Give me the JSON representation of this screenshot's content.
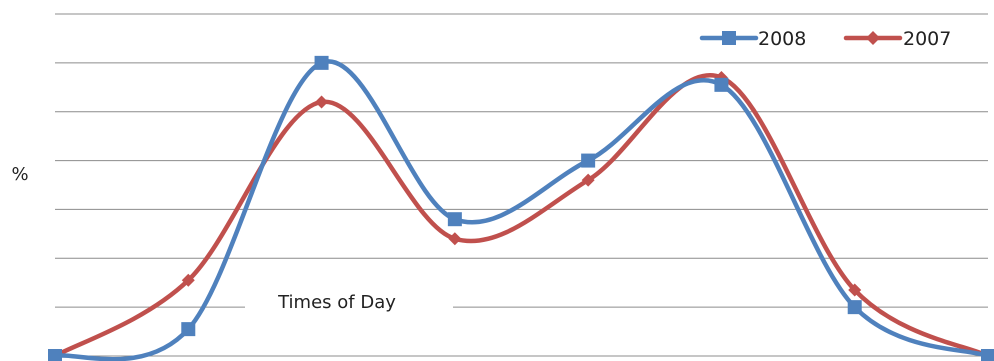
{
  "chart_data": {
    "type": "line",
    "title": "",
    "xlabel": "Times of Day",
    "ylabel": "%",
    "x": [
      0,
      1,
      2,
      3,
      4,
      5,
      6,
      7
    ],
    "ylim": [
      0,
      7
    ],
    "grid": true,
    "smooth": true,
    "legend_position": "top-right",
    "series": [
      {
        "name": "2008",
        "values": [
          0,
          0.55,
          6.0,
          2.8,
          4.0,
          5.55,
          1.0,
          0
        ],
        "color": "#4f81bd",
        "marker": "square"
      },
      {
        "name": "2007",
        "values": [
          0,
          1.55,
          5.2,
          2.4,
          3.6,
          5.7,
          1.35,
          0
        ],
        "color": "#c0504d",
        "marker": "diamond"
      }
    ]
  }
}
